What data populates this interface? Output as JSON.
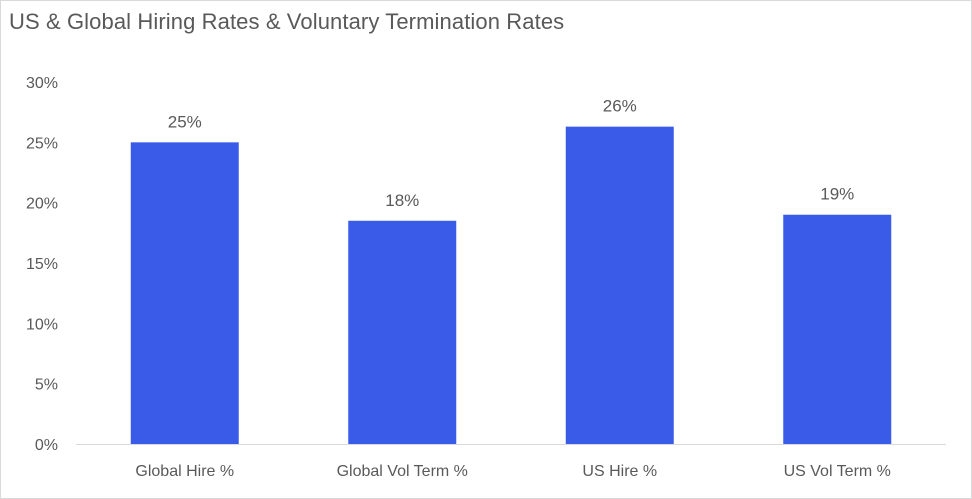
{
  "chart_data": {
    "type": "bar",
    "title": "US & Global Hiring Rates & Voluntary Termination Rates",
    "xlabel": "",
    "ylabel": "",
    "categories": [
      "Global Hire %",
      "Global Vol Term %",
      "US Hire %",
      "US Vol Term %"
    ],
    "values": [
      25,
      18.5,
      26.3,
      19
    ],
    "data_labels": [
      "25%",
      "18%",
      "26%",
      "19%"
    ],
    "ylim": [
      0,
      30
    ],
    "yticks": [
      0,
      5,
      10,
      15,
      20,
      25,
      30
    ],
    "ytick_labels": [
      "0%",
      "5%",
      "10%",
      "15%",
      "20%",
      "25%",
      "30%"
    ],
    "grid": false,
    "legend": "none",
    "colors": {
      "bar": "#3a5be8",
      "text": "#595959",
      "axis": "#d9d9d9"
    }
  }
}
